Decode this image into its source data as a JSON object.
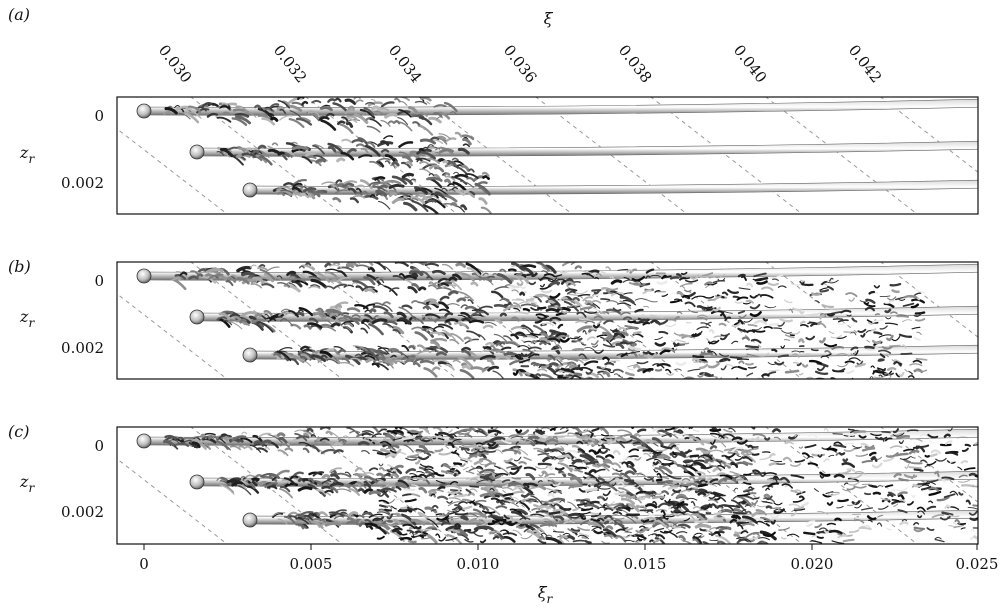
{
  "figure": {
    "top_axis_label": "ξ",
    "top_ticks": [
      "0.030",
      "0.032",
      "0.034",
      "0.036",
      "0.038",
      "0.040",
      "0.042"
    ],
    "bottom_axis_label": "ξ",
    "bottom_axis_label_sub": "r",
    "bottom_ticks": [
      "0",
      "0.005",
      "0.010",
      "0.015",
      "0.020",
      "0.025"
    ],
    "y_axis_label": "z",
    "y_axis_label_sub": "r",
    "panels": [
      {
        "label": "(a)",
        "y_ticks": [
          "0",
          "0.002"
        ],
        "turbulence_extent": 0.38
      },
      {
        "label": "(b)",
        "y_ticks": [
          "0",
          "0.002"
        ],
        "turbulence_extent": 0.72
      },
      {
        "label": "(c)",
        "y_ticks": [
          "0",
          "0.002"
        ],
        "turbulence_extent": 1.0
      }
    ],
    "colors": {
      "ink": "#111111",
      "dash": "#9a9a9a",
      "tube": "#8c8c8c"
    }
  }
}
